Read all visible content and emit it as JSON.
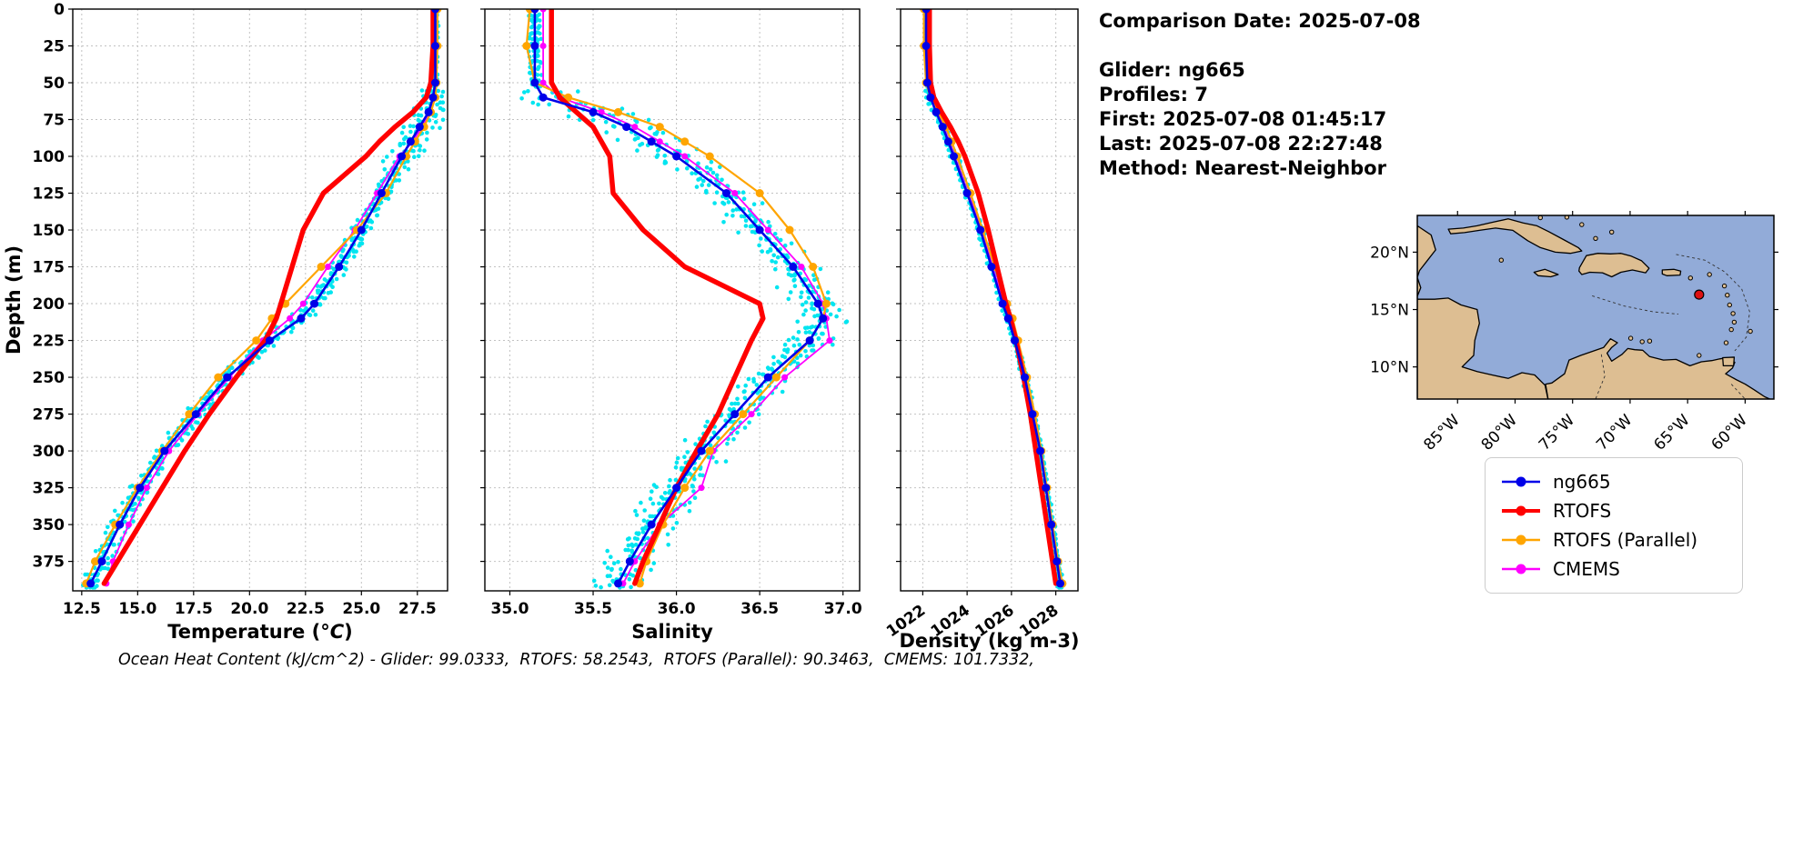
{
  "info_panel": {
    "lines": [
      "Comparison Date: 2025-07-08",
      "",
      "Glider: ng665",
      "Profiles: 7",
      "First: 2025-07-08 01:45:17",
      "Last: 2025-07-08 22:27:48",
      "Method: Nearest-Neighbor"
    ]
  },
  "footer": {
    "text": "Ocean Heat Content (kJ/cm^2) - Glider: 99.0333,  RTOFS: 58.2543,  RTOFS (Parallel): 90.3463,  CMEMS: 101.7332,"
  },
  "legend": {
    "items": [
      {
        "label": "ng665",
        "color": "#0000e8"
      },
      {
        "label": "RTOFS",
        "color": "#ff0000"
      },
      {
        "label": "RTOFS (Parallel)",
        "color": "#ffa500"
      },
      {
        "label": "CMEMS",
        "color": "#ff00ff"
      }
    ]
  },
  "map": {
    "extent": {
      "lon_min": -88.5,
      "lon_max": -57.5,
      "lat_min": 7.2,
      "lat_max": 23.2
    },
    "ocean_color": "#92abd8",
    "land_color": "#ddbe92",
    "coast_color": "#000000",
    "lat_ticks": [
      {
        "value": 20,
        "label": "20°N"
      },
      {
        "value": 15,
        "label": "15°N"
      },
      {
        "value": 10,
        "label": "10°N"
      }
    ],
    "lon_ticks": [
      {
        "value": -85,
        "label": "85°W"
      },
      {
        "value": -80,
        "label": "80°W"
      },
      {
        "value": -75,
        "label": "75°W"
      },
      {
        "value": -70,
        "label": "70°W"
      },
      {
        "value": -65,
        "label": "65°W"
      },
      {
        "value": -60,
        "label": "60°W"
      }
    ],
    "glider_marker": {
      "lon": -64.0,
      "lat": 16.3,
      "color": "#dd1111"
    }
  },
  "chart_data": {
    "type": "line",
    "description": "Vertical ocean profiles (depth increases downward) comparing glider ng665 observations with RTOFS, RTOFS (Parallel) and CMEMS model output; cyan dots are the 7 raw glider profiles",
    "depth_axis": {
      "label": "Depth (m)",
      "inverted": true,
      "ylim": [
        0,
        395
      ],
      "yticks": [
        0,
        25,
        50,
        75,
        100,
        125,
        150,
        175,
        200,
        225,
        250,
        275,
        300,
        325,
        350,
        375
      ],
      "depths": [
        0,
        25,
        50,
        60,
        70,
        80,
        90,
        100,
        125,
        150,
        175,
        200,
        210,
        225,
        250,
        275,
        300,
        325,
        350,
        375,
        390
      ]
    },
    "panels": [
      {
        "xlabel": "Temperature (°C)",
        "xlim": [
          12.1,
          28.85
        ],
        "xticks": [
          12.5,
          15.0,
          17.5,
          20.0,
          22.5,
          25.0,
          27.5
        ],
        "xtick_labels": [
          "12.5",
          "15.0",
          "17.5",
          "20.0",
          "22.5",
          "25.0",
          "27.5"
        ],
        "xtick_rotation": 0,
        "glider_scatter": {
          "color": "#00e5f0",
          "spread": 0.3
        },
        "series": [
          {
            "name": "ng665",
            "color": "#0000e8",
            "line_width": 2.6,
            "marker_size": 4.5,
            "values": [
              28.3,
              28.3,
              28.3,
              28.2,
              28.0,
              27.6,
              27.2,
              26.8,
              25.9,
              25.0,
              24.0,
              22.9,
              22.3,
              20.9,
              19.0,
              17.6,
              16.2,
              15.1,
              14.2,
              13.4,
              12.9
            ]
          },
          {
            "name": "RTOFS",
            "color": "#ff0000",
            "line_width": 5.5,
            "marker_size": 0,
            "values": [
              28.2,
              28.2,
              28.1,
              27.9,
              27.3,
              26.5,
              25.8,
              25.2,
              23.3,
              22.4,
              21.9,
              21.4,
              21.2,
              20.7,
              19.4,
              18.2,
              17.1,
              16.1,
              15.1,
              14.1,
              13.5
            ]
          },
          {
            "name": "RTOFS (Parallel)",
            "color": "#ffa500",
            "line_width": 2.2,
            "marker_size": 4.5,
            "values": [
              28.4,
              28.4,
              28.35,
              28.3,
              28.1,
              27.8,
              27.4,
              27.0,
              26.1,
              24.8,
              23.2,
              21.6,
              21.0,
              20.3,
              18.6,
              17.3,
              16.1,
              15.0,
              14.0,
              13.1,
              12.7
            ]
          },
          {
            "name": "CMEMS",
            "color": "#ff00ff",
            "line_width": 1.8,
            "marker_size": 3.5,
            "values": [
              28.3,
              28.3,
              28.3,
              28.25,
              28.1,
              27.7,
              27.3,
              26.7,
              25.7,
              24.7,
              23.5,
              22.4,
              21.8,
              20.6,
              19.1,
              17.7,
              16.4,
              15.4,
              14.6,
              13.9,
              13.6
            ]
          }
        ]
      },
      {
        "xlabel": "Salinity",
        "xlim": [
          34.85,
          37.1
        ],
        "xticks": [
          35.0,
          35.5,
          36.0,
          36.5,
          37.0
        ],
        "xtick_labels": [
          "35.0",
          "35.5",
          "36.0",
          "36.5",
          "37.0"
        ],
        "xtick_rotation": 0,
        "glider_scatter": {
          "color": "#00e5f0",
          "spread": 0.09
        },
        "series": [
          {
            "name": "ng665",
            "color": "#0000e8",
            "line_width": 2.6,
            "marker_size": 4.5,
            "values": [
              35.15,
              35.15,
              35.15,
              35.2,
              35.5,
              35.7,
              35.85,
              36.0,
              36.3,
              36.5,
              36.7,
              36.85,
              36.88,
              36.8,
              36.55,
              36.35,
              36.15,
              36.0,
              35.85,
              35.72,
              35.65
            ]
          },
          {
            "name": "RTOFS",
            "color": "#ff0000",
            "line_width": 5.5,
            "marker_size": 0,
            "values": [
              35.25,
              35.25,
              35.25,
              35.3,
              35.4,
              35.5,
              35.55,
              35.6,
              35.62,
              35.8,
              36.05,
              36.5,
              36.52,
              36.45,
              36.35,
              36.25,
              36.12,
              36.0,
              35.9,
              35.8,
              35.75
            ]
          },
          {
            "name": "RTOFS (Parallel)",
            "color": "#ffa500",
            "line_width": 2.2,
            "marker_size": 4.5,
            "values": [
              35.12,
              35.1,
              35.15,
              35.35,
              35.65,
              35.9,
              36.05,
              36.2,
              36.5,
              36.68,
              36.82,
              36.9,
              36.88,
              36.8,
              36.6,
              36.4,
              36.2,
              36.05,
              35.92,
              35.82,
              35.78
            ]
          },
          {
            "name": "CMEMS",
            "color": "#ff00ff",
            "line_width": 1.8,
            "marker_size": 3.5,
            "values": [
              35.2,
              35.2,
              35.2,
              35.3,
              35.55,
              35.75,
              35.9,
              36.05,
              36.35,
              36.55,
              36.75,
              36.88,
              36.9,
              36.92,
              36.65,
              36.45,
              36.22,
              36.15,
              35.9,
              35.75,
              35.68
            ]
          }
        ]
      },
      {
        "xlabel": "Density (kg m-3)",
        "xlim": [
          1021.0,
          1029.0
        ],
        "xticks": [
          1022,
          1024,
          1026,
          1028
        ],
        "xtick_labels": [
          "1022",
          "1024",
          "1026",
          "1028"
        ],
        "xtick_rotation": 35,
        "glider_scatter": {
          "color": "#00e5f0",
          "spread": 0.08
        },
        "series": [
          {
            "name": "ng665",
            "color": "#0000e8",
            "line_width": 2.6,
            "marker_size": 4.5,
            "values": [
              1022.15,
              1022.15,
              1022.2,
              1022.35,
              1022.6,
              1022.9,
              1023.15,
              1023.4,
              1024.0,
              1024.6,
              1025.1,
              1025.6,
              1025.85,
              1026.15,
              1026.6,
              1026.95,
              1027.3,
              1027.55,
              1027.8,
              1028.05,
              1028.2
            ]
          },
          {
            "name": "RTOFS",
            "color": "#ff0000",
            "line_width": 5.5,
            "marker_size": 0,
            "values": [
              1022.3,
              1022.3,
              1022.35,
              1022.5,
              1022.85,
              1023.25,
              1023.6,
              1023.9,
              1024.5,
              1024.95,
              1025.35,
              1025.75,
              1025.95,
              1026.2,
              1026.55,
              1026.85,
              1027.1,
              1027.35,
              1027.6,
              1027.85,
              1028.0
            ]
          },
          {
            "name": "RTOFS (Parallel)",
            "color": "#ffa500",
            "line_width": 2.2,
            "marker_size": 4.5,
            "values": [
              1022.05,
              1022.05,
              1022.15,
              1022.35,
              1022.7,
              1023.05,
              1023.3,
              1023.55,
              1024.15,
              1024.7,
              1025.25,
              1025.8,
              1026.05,
              1026.3,
              1026.7,
              1027.05,
              1027.35,
              1027.6,
              1027.85,
              1028.1,
              1028.3
            ]
          },
          {
            "name": "CMEMS",
            "color": "#ff00ff",
            "line_width": 1.8,
            "marker_size": 3.5,
            "values": [
              1022.15,
              1022.15,
              1022.2,
              1022.35,
              1022.62,
              1022.95,
              1023.2,
              1023.45,
              1024.05,
              1024.65,
              1025.15,
              1025.65,
              1025.9,
              1026.2,
              1026.65,
              1027.0,
              1027.3,
              1027.6,
              1027.82,
              1028.08,
              1028.25
            ]
          }
        ]
      }
    ]
  }
}
